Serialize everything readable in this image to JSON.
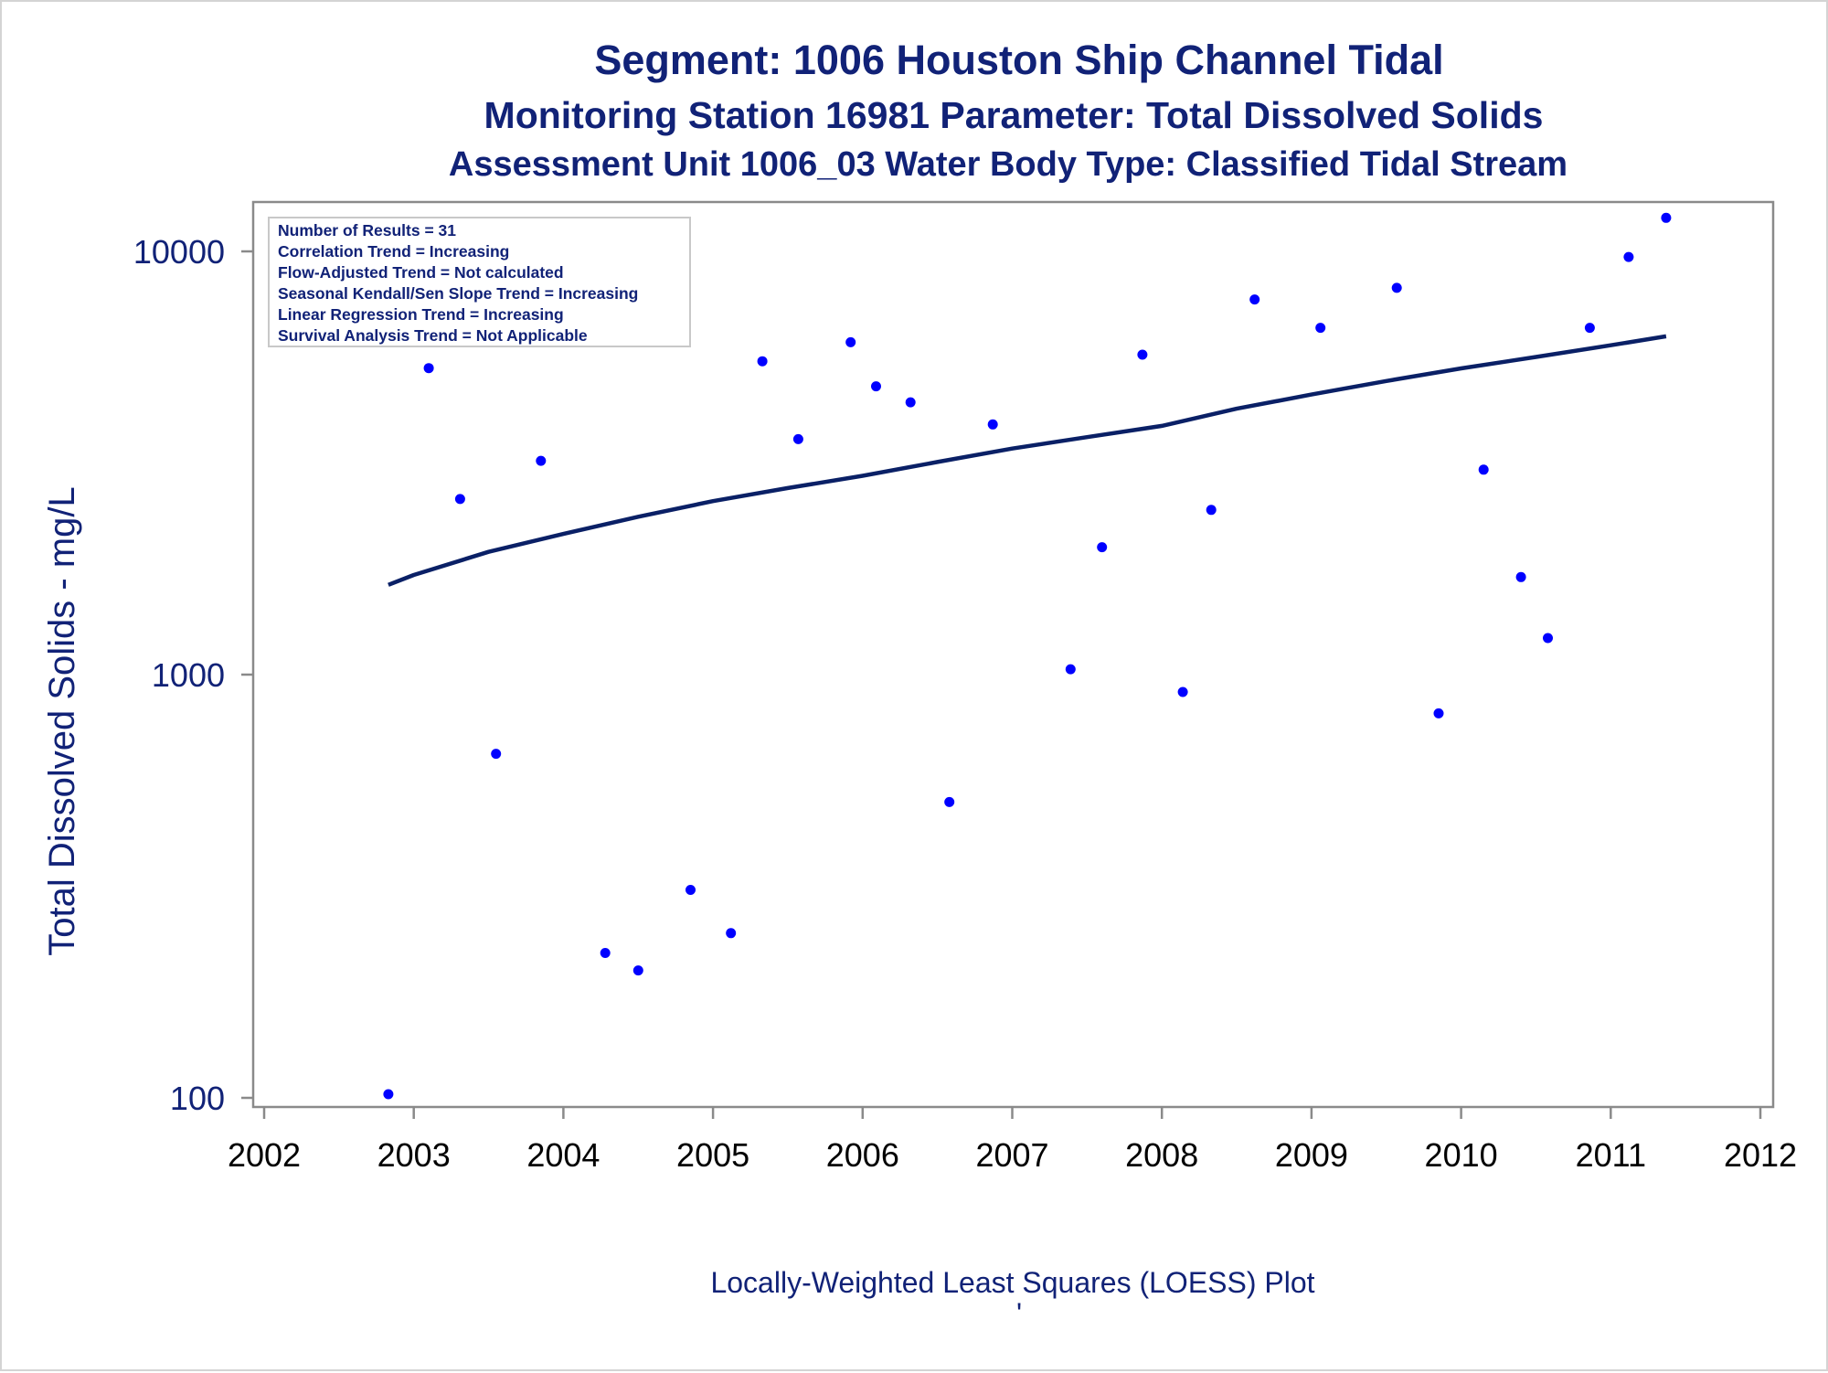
{
  "chart_data": {
    "type": "scatter",
    "title": "Segment: 1006  Houston Ship Channel Tidal",
    "subtitle": "Monitoring Station 16981 Parameter: Total Dissolved Solids",
    "subtitle2": "Assessment Unit 1006_03   Water Body Type: Classified Tidal Stream",
    "ylabel": "Total Dissolved Solids - mg/L",
    "xlabel": "",
    "caption": "Locally-Weighted Least Squares (LOESS) Plot",
    "footnote": "'",
    "y_scale": "log",
    "xlim": [
      2002,
      2012
    ],
    "ylim": [
      100,
      13000
    ],
    "x_ticks": [
      "2002",
      "2003",
      "2004",
      "2005",
      "2006",
      "2007",
      "2008",
      "2009",
      "2010",
      "2011",
      "2012"
    ],
    "y_ticks": [
      "100",
      "1000",
      "10000"
    ],
    "grid": false,
    "legend_placement": "top-left",
    "stats": [
      "Number of Results = 31",
      "Correlation Trend = Increasing",
      "Flow-Adjusted Trend = Not calculated",
      "Seasonal Kendall/Sen Slope Trend = Increasing",
      "Linear Regression Trend = Increasing",
      "Survival Analysis Trend = Not Applicable"
    ],
    "colors": {
      "points": "#0000ff",
      "line": "#0a2066",
      "text": "#112277",
      "axis": "#8a8a8a"
    },
    "series": [
      {
        "type": "scatter",
        "x": [
          2002.83,
          2003.1,
          2003.31,
          2003.55,
          2003.85,
          2004.28,
          2004.5,
          2004.85,
          2005.12,
          2005.33,
          2005.57,
          2005.92,
          2006.09,
          2006.32,
          2006.58,
          2006.87,
          2007.39,
          2007.6,
          2007.87,
          2008.14,
          2008.33,
          2008.62,
          2009.06,
          2009.57,
          2009.85,
          2010.15,
          2010.4,
          2010.58,
          2010.86,
          2011.12,
          2011.37
        ],
        "y": [
          102,
          5300,
          2600,
          650,
          3200,
          220,
          200,
          310,
          245,
          5500,
          3600,
          6100,
          4800,
          4400,
          500,
          3900,
          1030,
          2000,
          5700,
          910,
          2450,
          7700,
          6600,
          8200,
          810,
          3050,
          1700,
          1220,
          6600,
          9700,
          12000
        ]
      },
      {
        "type": "line",
        "name": "LOESS",
        "x": [
          2002.83,
          2003.0,
          2003.5,
          2004.0,
          2004.5,
          2005.0,
          2005.5,
          2006.0,
          2006.5,
          2007.0,
          2007.5,
          2008.0,
          2008.5,
          2009.0,
          2009.5,
          2010.0,
          2010.5,
          2011.0,
          2011.37
        ],
        "y": [
          1630,
          1720,
          1950,
          2150,
          2360,
          2570,
          2760,
          2950,
          3180,
          3420,
          3640,
          3870,
          4250,
          4590,
          4940,
          5290,
          5630,
          6000,
          6300
        ]
      }
    ]
  }
}
